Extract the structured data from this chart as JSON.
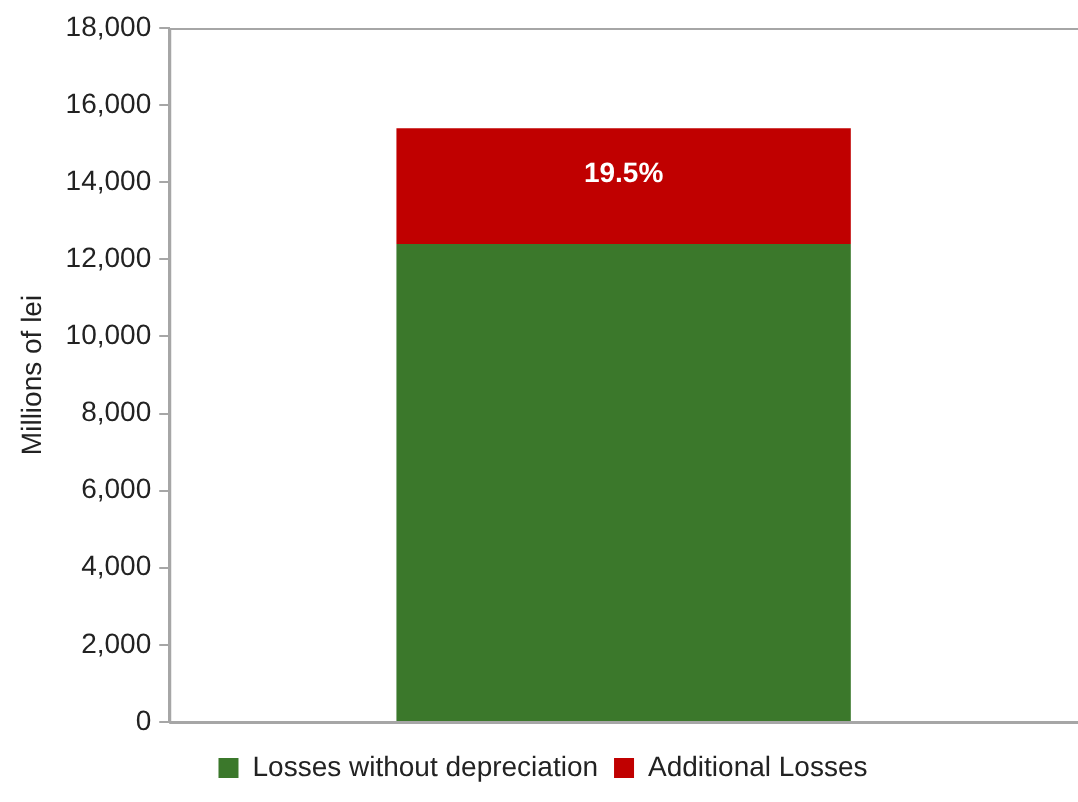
{
  "chart_data": {
    "type": "bar",
    "stacked": true,
    "ylabel": "Millions of lei",
    "categories": [
      null
    ],
    "series": [
      {
        "name": "Losses without depreciation",
        "color": "#3b782b",
        "values": [
          12400
        ]
      },
      {
        "name": "Additional Losses",
        "color": "#c00000",
        "values": [
          3000
        ]
      }
    ],
    "annotations": [
      "19.5%"
    ],
    "ylim": [
      0,
      18000
    ],
    "yticks": [
      0,
      {
        "value": 2000,
        "label": "2,000"
      },
      {
        "value": 4000,
        "label": "4,000"
      },
      {
        "value": 6000,
        "label": "6,000"
      },
      {
        "value": 8000,
        "label": "8,000"
      },
      {
        "value": 10000,
        "label": "10,000"
      },
      {
        "value": 12000,
        "label": "12,000"
      },
      {
        "value": 14000,
        "label": "14,000"
      },
      {
        "value": 16000,
        "label": "16,000"
      },
      {
        "value": 18000,
        "label": "18,000"
      }
    ],
    "grid": false,
    "legend": "bottom"
  }
}
